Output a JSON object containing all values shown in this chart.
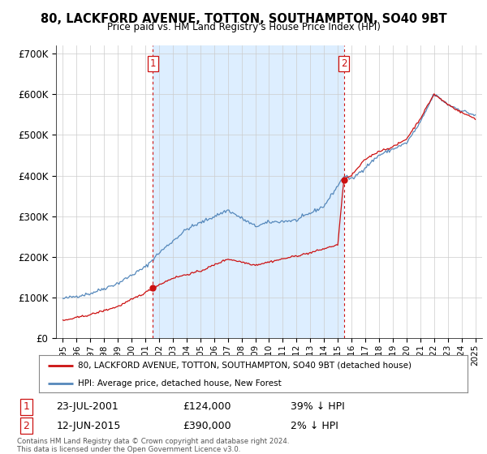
{
  "title": "80, LACKFORD AVENUE, TOTTON, SOUTHAMPTON, SO40 9BT",
  "subtitle": "Price paid vs. HM Land Registry's House Price Index (HPI)",
  "legend_line1": "80, LACKFORD AVENUE, TOTTON, SOUTHAMPTON, SO40 9BT (detached house)",
  "legend_line2": "HPI: Average price, detached house, New Forest",
  "transaction1_date": "23-JUL-2001",
  "transaction1_price": 124000,
  "transaction1_note": "39% ↓ HPI",
  "transaction2_date": "12-JUN-2015",
  "transaction2_price": 390000,
  "transaction2_note": "2% ↓ HPI",
  "vline1_x": 2001.55,
  "vline2_x": 2015.44,
  "dot1_x": 2001.55,
  "dot1_y": 124000,
  "dot2_x": 2015.44,
  "dot2_y": 390000,
  "hpi_color": "#5588bb",
  "price_color": "#cc1111",
  "vline_color": "#cc1111",
  "shade_color": "#ddeeff",
  "background_color": "#ffffff",
  "grid_color": "#cccccc",
  "footer_text": "Contains HM Land Registry data © Crown copyright and database right 2024.\nThis data is licensed under the Open Government Licence v3.0.",
  "ylim": [
    0,
    720000
  ],
  "yticks": [
    0,
    100000,
    200000,
    300000,
    400000,
    500000,
    600000,
    700000
  ],
  "ytick_labels": [
    "£0",
    "£100K",
    "£200K",
    "£300K",
    "£400K",
    "£500K",
    "£600K",
    "£700K"
  ],
  "xlim_start": 1994.5,
  "xlim_end": 2025.5,
  "hpi_start_year": 1995,
  "hpi_end_year": 2025,
  "hpi_key_years": [
    1995,
    1997,
    1999,
    2001,
    2002,
    2004,
    2007,
    2008,
    2009,
    2010,
    2012,
    2014,
    2015.5,
    2016,
    2018,
    2020,
    2021,
    2022,
    2023,
    2024,
    2025
  ],
  "hpi_key_vals": [
    97000,
    110000,
    135000,
    175000,
    210000,
    268000,
    315000,
    295000,
    275000,
    285000,
    290000,
    325000,
    400000,
    390000,
    450000,
    480000,
    530000,
    600000,
    575000,
    560000,
    548000
  ],
  "price_key_years_before": [
    1995,
    1997,
    1999,
    2001.0,
    2001.55
  ],
  "price_key_vals_before": [
    43000,
    58000,
    78000,
    112000,
    124000
  ],
  "price_key_years_after": [
    2001.55,
    2003,
    2005,
    2007,
    2009,
    2011,
    2013,
    2015.0,
    2015.44
  ],
  "price_key_vals_after": [
    124000,
    148000,
    165000,
    195000,
    180000,
    195000,
    210000,
    230000,
    390000
  ],
  "price_key_years_post": [
    2015.44,
    2016,
    2017,
    2018,
    2019,
    2020,
    2021,
    2022,
    2023,
    2024,
    2025
  ],
  "price_key_vals_post": [
    390000,
    400000,
    440000,
    460000,
    470000,
    490000,
    540000,
    600000,
    575000,
    555000,
    540000
  ]
}
